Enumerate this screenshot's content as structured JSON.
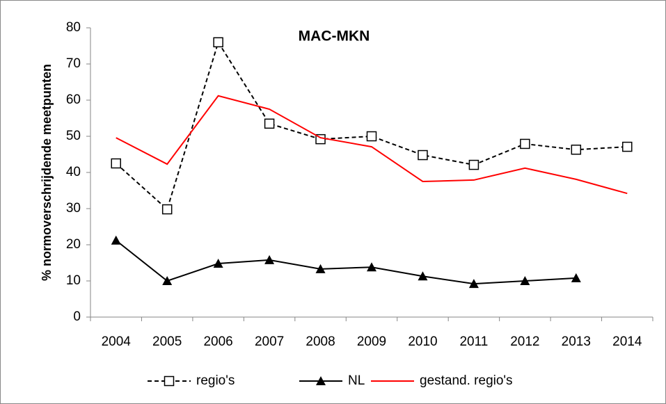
{
  "chart_data": {
    "type": "line",
    "title": "MAC-MKN",
    "y_label": "% normoverschrijdende meetpunten",
    "categories": [
      "2004",
      "2005",
      "2006",
      "2007",
      "2008",
      "2009",
      "2010",
      "2011",
      "2012",
      "2013",
      "2014"
    ],
    "series": [
      {
        "name": "regio's",
        "color": "#000000",
        "dash": true,
        "marker": "square",
        "values": [
          42.5,
          29.8,
          76,
          53.5,
          49.2,
          50,
          44.8,
          42.1,
          47.9,
          46.3,
          47.1
        ]
      },
      {
        "name": "NL",
        "color": "#000000",
        "dash": false,
        "marker": "triangle",
        "values": [
          21.2,
          10,
          14.8,
          15.8,
          13.3,
          13.8,
          11.3,
          9.2,
          10,
          10.8,
          null
        ]
      },
      {
        "name": "gestand. regio's",
        "color": "#ff0000",
        "dash": false,
        "marker": "none",
        "values": [
          49.6,
          42.3,
          61.2,
          57.5,
          49.6,
          47.1,
          37.5,
          37.9,
          41.2,
          38.1,
          34.2
        ]
      }
    ],
    "ylim": [
      0,
      80
    ],
    "yticks": [
      0,
      10,
      20,
      30,
      40,
      50,
      60,
      70,
      80
    ],
    "legend": "bottom"
  }
}
